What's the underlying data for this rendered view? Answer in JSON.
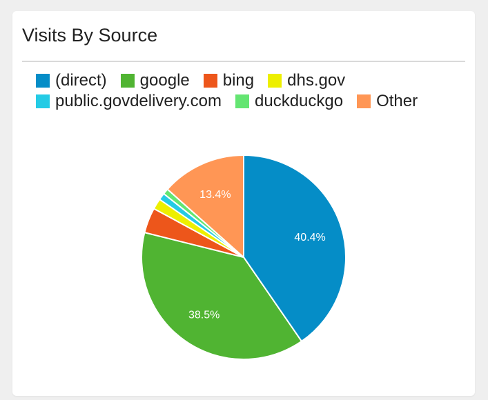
{
  "card": {
    "title": "Visits By Source"
  },
  "chart_data": {
    "type": "pie",
    "title": "",
    "legend_position": "top",
    "categories": [
      "(direct)",
      "google",
      "bing",
      "dhs.gov",
      "public.govdelivery.com",
      "duckduckgo",
      "Other"
    ],
    "values": [
      40.4,
      38.5,
      4.0,
      1.7,
      1.1,
      0.9,
      13.4
    ],
    "data_labels": [
      "40.4%",
      "38.5%",
      "",
      "",
      "",
      "",
      "13.4%"
    ],
    "colors": [
      "#058dc7",
      "#50b432",
      "#ed561b",
      "#edef00",
      "#24cbe5",
      "#64e572",
      "#ff9655"
    ]
  }
}
